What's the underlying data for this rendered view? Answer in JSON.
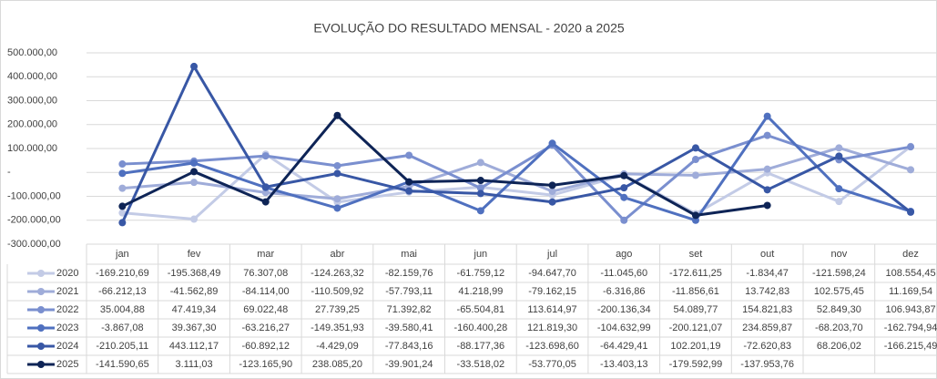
{
  "chart_data": {
    "type": "line",
    "title": "EVOLUÇÃO DO RESULTADO MENSAL - 2020 a 2025",
    "categories": [
      "jan",
      "fev",
      "mar",
      "abr",
      "mai",
      "jun",
      "jul",
      "ago",
      "set",
      "out",
      "nov",
      "dez"
    ],
    "ylim": [
      -300000,
      500000
    ],
    "yticks": [
      {
        "value": -300000,
        "label": "-300.000,00"
      },
      {
        "value": -200000,
        "label": "-200.000,00"
      },
      {
        "value": -100000,
        "label": "-100.000,00"
      },
      {
        "value": 0,
        "label": "-"
      },
      {
        "value": 100000,
        "label": "100.000,00"
      },
      {
        "value": 200000,
        "label": "200.000,00"
      },
      {
        "value": 300000,
        "label": "300.000,00"
      },
      {
        "value": 400000,
        "label": "400.000,00"
      },
      {
        "value": 500000,
        "label": "500.000,00"
      }
    ],
    "grid": true,
    "series": [
      {
        "name": "2020",
        "color": "#c3cbe6",
        "values": [
          -169210.69,
          -195368.49,
          76307.08,
          -124263.32,
          -82159.76,
          -61759.12,
          -94647.7,
          -11045.6,
          -172611.25,
          -1834.47,
          -121598.24,
          108554.45
        ],
        "value_labels": [
          "-169.210,69",
          "-195.368,49",
          "76.307,08",
          "-124.263,32",
          "-82.159,76",
          "-61.759,12",
          "-94.647,70",
          "-11.045,60",
          "-172.611,25",
          "-1.834,47",
          "-121.598,24",
          "108.554,45"
        ]
      },
      {
        "name": "2021",
        "color": "#9facd9",
        "values": [
          -66212.13,
          -41562.89,
          -84114.0,
          -110509.92,
          -57793.11,
          41218.99,
          -79162.15,
          -6316.86,
          -11856.61,
          13742.83,
          102575.45,
          11169.54
        ],
        "value_labels": [
          "-66.212,13",
          "-41.562,89",
          "-84.114,00",
          "-110.509,92",
          "-57.793,11",
          "41.218,99",
          "-79.162,15",
          "-6.316,86",
          "-11.856,61",
          "13.742,83",
          "102.575,45",
          "11.169,54"
        ]
      },
      {
        "name": "2022",
        "color": "#7a8fcf",
        "values": [
          35004.88,
          47419.34,
          69022.48,
          27739.25,
          71392.82,
          -65504.81,
          113614.97,
          -200136.34,
          54089.77,
          154821.83,
          52849.3,
          106943.87
        ],
        "value_labels": [
          "35.004,88",
          "47.419,34",
          "69.022,48",
          "27.739,25",
          "71.392,82",
          "-65.504,81",
          "113.614,97",
          "-200.136,34",
          "54.089,77",
          "154.821,83",
          "52.849,30",
          "106.943,87"
        ]
      },
      {
        "name": "2023",
        "color": "#4f70bf",
        "values": [
          -3867.08,
          39367.3,
          -63216.27,
          -149351.93,
          -39580.41,
          -160400.28,
          121819.3,
          -104632.99,
          -200121.07,
          234859.87,
          -68203.7,
          -162794.94
        ],
        "value_labels": [
          "-3.867,08",
          "39.367,30",
          "-63.216,27",
          "-149.351,93",
          "-39.580,41",
          "-160.400,28",
          "121.819,30",
          "-104.632,99",
          "-200.121,07",
          "234.859,87",
          "-68.203,70",
          "-162.794,94"
        ]
      },
      {
        "name": "2024",
        "color": "#3857a5",
        "values": [
          -210205.11,
          443112.17,
          -60892.12,
          -4429.09,
          -77843.16,
          -88177.36,
          -123698.6,
          -64429.41,
          102201.19,
          -72620.83,
          68206.02,
          -166215.49
        ],
        "value_labels": [
          "-210.205,11",
          "443.112,17",
          "-60.892,12",
          "-4.429,09",
          "-77.843,16",
          "-88.177,36",
          "-123.698,60",
          "-64.429,41",
          "102.201,19",
          "-72.620,83",
          "68.206,02",
          "-166.215,49"
        ]
      },
      {
        "name": "2025",
        "color": "#0e2456",
        "values": [
          -141590.65,
          3111.03,
          -123165.9,
          238085.2,
          -39901.24,
          -33518.02,
          -53770.05,
          -13403.13,
          -179592.99,
          -137953.76,
          null,
          null
        ],
        "value_labels": [
          "-141.590,65",
          "3.111,03",
          "-123.165,90",
          "238.085,20",
          "-39.901,24",
          "-33.518,02",
          "-53.770,05",
          "-13.403,13",
          "-179.592,99",
          "-137.953,76",
          null,
          null
        ]
      }
    ]
  }
}
